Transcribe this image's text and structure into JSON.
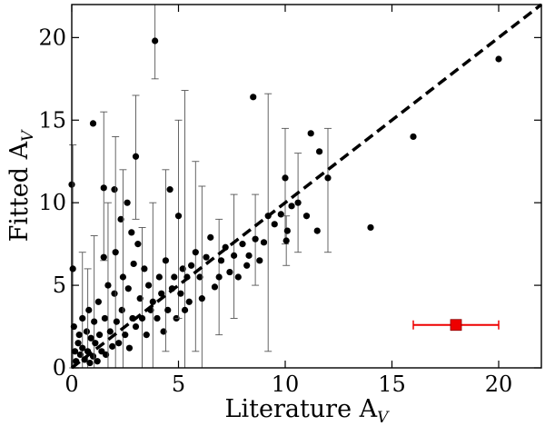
{
  "chart_data": {
    "type": "scatter",
    "xlabel": "Literature A",
    "xlabel_sub": "V",
    "ylabel": "Fitted A",
    "ylabel_sub": "V",
    "xlim": [
      0,
      22
    ],
    "ylim": [
      0,
      22
    ],
    "xticks": [
      0,
      5,
      10,
      15,
      20
    ],
    "yticks": [
      0,
      5,
      10,
      15,
      20
    ],
    "grid": false,
    "one_to_one_line": {
      "from": [
        0,
        0
      ],
      "to": [
        22,
        22
      ],
      "style": "dashed",
      "color": "#000000"
    },
    "points": [
      {
        "x": 0.0,
        "y": 11.1
      },
      {
        "x": 0.05,
        "y": 6.0,
        "err": [
          0.0,
          13.5
        ]
      },
      {
        "x": 0.1,
        "y": 2.5
      },
      {
        "x": 0.15,
        "y": 1.0
      },
      {
        "x": 0.2,
        "y": 0.4
      },
      {
        "x": 0.3,
        "y": 1.5
      },
      {
        "x": 0.35,
        "y": 2.0
      },
      {
        "x": 0.4,
        "y": 0.8
      },
      {
        "x": 0.5,
        "y": 3.0,
        "err": [
          0.0,
          7.0
        ]
      },
      {
        "x": 0.5,
        "y": 1.2
      },
      {
        "x": 0.6,
        "y": 0.5
      },
      {
        "x": 0.7,
        "y": 2.2
      },
      {
        "x": 0.75,
        "y": 1.0,
        "err": [
          0.0,
          6.0
        ]
      },
      {
        "x": 0.8,
        "y": 3.5
      },
      {
        "x": 0.85,
        "y": 0.3
      },
      {
        "x": 0.9,
        "y": 1.8
      },
      {
        "x": 1.0,
        "y": 14.8
      },
      {
        "x": 1.0,
        "y": 0.7
      },
      {
        "x": 1.05,
        "y": 2.8,
        "err": [
          0.0,
          8.0
        ]
      },
      {
        "x": 1.1,
        "y": 1.5
      },
      {
        "x": 1.2,
        "y": 0.4
      },
      {
        "x": 1.25,
        "y": 4.0
      },
      {
        "x": 1.3,
        "y": 2.0
      },
      {
        "x": 1.4,
        "y": 1.0
      },
      {
        "x": 1.5,
        "y": 10.9,
        "err": [
          6.5,
          15.5
        ]
      },
      {
        "x": 1.5,
        "y": 6.7
      },
      {
        "x": 1.55,
        "y": 3.0
      },
      {
        "x": 1.6,
        "y": 0.8
      },
      {
        "x": 1.7,
        "y": 5.0,
        "err": [
          0.0,
          10.0
        ]
      },
      {
        "x": 1.8,
        "y": 2.2
      },
      {
        "x": 1.9,
        "y": 1.3
      },
      {
        "x": 2.0,
        "y": 10.8
      },
      {
        "x": 2.0,
        "y": 4.5
      },
      {
        "x": 2.05,
        "y": 7.0,
        "err": [
          0.0,
          14.0
        ]
      },
      {
        "x": 2.1,
        "y": 2.8
      },
      {
        "x": 2.2,
        "y": 1.5
      },
      {
        "x": 2.3,
        "y": 9.0
      },
      {
        "x": 2.35,
        "y": 3.5
      },
      {
        "x": 2.4,
        "y": 5.5,
        "err": [
          0.0,
          12.0
        ]
      },
      {
        "x": 2.5,
        "y": 2.0
      },
      {
        "x": 2.6,
        "y": 10.0
      },
      {
        "x": 2.65,
        "y": 4.8
      },
      {
        "x": 2.7,
        "y": 1.2
      },
      {
        "x": 2.8,
        "y": 8.2
      },
      {
        "x": 2.85,
        "y": 3.0
      },
      {
        "x": 2.9,
        "y": 6.3
      },
      {
        "x": 3.0,
        "y": 12.8,
        "err": [
          9.0,
          16.5
        ]
      },
      {
        "x": 3.0,
        "y": 2.5
      },
      {
        "x": 3.1,
        "y": 7.5
      },
      {
        "x": 3.2,
        "y": 4.2
      },
      {
        "x": 3.3,
        "y": 3.0,
        "err": [
          0.0,
          8.5
        ]
      },
      {
        "x": 3.4,
        "y": 6.0
      },
      {
        "x": 3.5,
        "y": 2.0
      },
      {
        "x": 3.6,
        "y": 5.0
      },
      {
        "x": 3.7,
        "y": 3.5
      },
      {
        "x": 3.8,
        "y": 4.0,
        "err": [
          0.0,
          10.0
        ]
      },
      {
        "x": 3.9,
        "y": 19.8,
        "err": [
          17.5,
          22.0
        ]
      },
      {
        "x": 4.0,
        "y": 3.0
      },
      {
        "x": 4.1,
        "y": 5.5
      },
      {
        "x": 4.2,
        "y": 4.5
      },
      {
        "x": 4.3,
        "y": 2.2
      },
      {
        "x": 4.4,
        "y": 6.5,
        "err": [
          1.0,
          12.0
        ]
      },
      {
        "x": 4.5,
        "y": 3.5
      },
      {
        "x": 4.6,
        "y": 10.8
      },
      {
        "x": 4.7,
        "y": 4.8
      },
      {
        "x": 4.8,
        "y": 5.5
      },
      {
        "x": 4.9,
        "y": 3.0
      },
      {
        "x": 5.0,
        "y": 9.2,
        "err": [
          3.0,
          15.0
        ]
      },
      {
        "x": 5.1,
        "y": 4.5
      },
      {
        "x": 5.2,
        "y": 6.0
      },
      {
        "x": 5.3,
        "y": 3.5,
        "err": [
          0.0,
          16.8
        ]
      },
      {
        "x": 5.4,
        "y": 5.5
      },
      {
        "x": 5.5,
        "y": 4.0
      },
      {
        "x": 5.6,
        "y": 6.2
      },
      {
        "x": 5.8,
        "y": 7.0,
        "err": [
          1.0,
          12.5
        ]
      },
      {
        "x": 6.0,
        "y": 5.5
      },
      {
        "x": 6.1,
        "y": 4.2,
        "err": [
          0.0,
          11.0
        ]
      },
      {
        "x": 6.3,
        "y": 6.7
      },
      {
        "x": 6.5,
        "y": 7.9
      },
      {
        "x": 6.7,
        "y": 4.9
      },
      {
        "x": 6.9,
        "y": 5.5,
        "err": [
          2.0,
          9.0
        ]
      },
      {
        "x": 7.0,
        "y": 6.5
      },
      {
        "x": 7.2,
        "y": 7.3
      },
      {
        "x": 7.4,
        "y": 5.8
      },
      {
        "x": 7.6,
        "y": 6.8,
        "err": [
          3.0,
          10.5
        ]
      },
      {
        "x": 7.8,
        "y": 5.5
      },
      {
        "x": 8.0,
        "y": 7.5
      },
      {
        "x": 8.2,
        "y": 6.2
      },
      {
        "x": 8.3,
        "y": 6.8
      },
      {
        "x": 8.5,
        "y": 16.4
      },
      {
        "x": 8.6,
        "y": 7.8,
        "err": [
          5.0,
          10.5
        ]
      },
      {
        "x": 8.8,
        "y": 6.5
      },
      {
        "x": 9.0,
        "y": 7.6
      },
      {
        "x": 9.2,
        "y": 9.2,
        "err": [
          1.0,
          16.6
        ]
      },
      {
        "x": 9.5,
        "y": 8.7
      },
      {
        "x": 9.8,
        "y": 9.3
      },
      {
        "x": 10.0,
        "y": 11.5,
        "err": [
          7.5,
          14.5
        ]
      },
      {
        "x": 10.05,
        "y": 7.7,
        "err": [
          6.2,
          9.2
        ]
      },
      {
        "x": 10.1,
        "y": 8.3
      },
      {
        "x": 10.3,
        "y": 9.8
      },
      {
        "x": 10.6,
        "y": 10.0,
        "err": [
          7.0,
          13.0
        ]
      },
      {
        "x": 11.0,
        "y": 9.2
      },
      {
        "x": 11.2,
        "y": 14.2
      },
      {
        "x": 11.5,
        "y": 8.3
      },
      {
        "x": 11.6,
        "y": 13.1
      },
      {
        "x": 12.0,
        "y": 11.5,
        "err": [
          7.0,
          14.5
        ]
      },
      {
        "x": 14.0,
        "y": 8.5
      },
      {
        "x": 16.0,
        "y": 14.0
      },
      {
        "x": 20.0,
        "y": 18.7
      }
    ],
    "annotation": {
      "type": "typical-error-bar",
      "marker": "square",
      "color": "#ee0000",
      "x": 18.0,
      "y": 2.6,
      "xerr": [
        16.0,
        20.0
      ]
    }
  }
}
